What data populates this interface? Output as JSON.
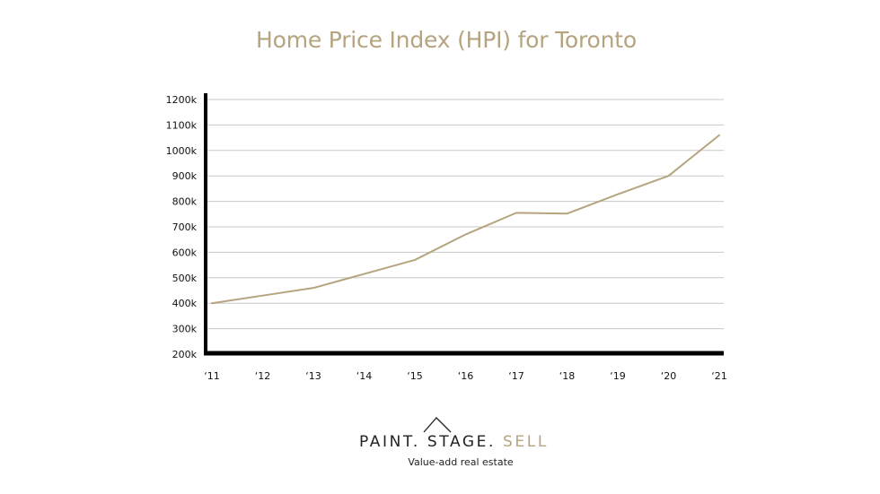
{
  "chart_data": {
    "type": "line",
    "title": "Home Price Index (HPI) for Toronto",
    "xlabel": "",
    "ylabel": "",
    "categories": [
      "‘11",
      "‘12",
      "‘13",
      "‘14",
      "‘15",
      "‘16",
      "‘17",
      "‘18",
      "‘19",
      "‘20",
      "‘21"
    ],
    "y_tick_labels": [
      "200k",
      "300k",
      "400k",
      "500k",
      "600k",
      "700k",
      "800k",
      "900k",
      "1000k",
      "1100k",
      "1200k"
    ],
    "ylim": [
      200,
      1200
    ],
    "grid": true,
    "series": [
      {
        "values": [
          400,
          430,
          460,
          515,
          570,
          670,
          755,
          752,
          828,
          900,
          1060
        ],
        "color": "#b5a47f"
      }
    ],
    "colors": {
      "line": "#b5a47f",
      "grid": "#c8c8c8",
      "axis": "#000000"
    }
  },
  "brand": {
    "part1": "PAINT. STAGE. ",
    "part2": "SELL",
    "tagline": "Value-add real estate",
    "logo_icon": "roof-icon"
  }
}
